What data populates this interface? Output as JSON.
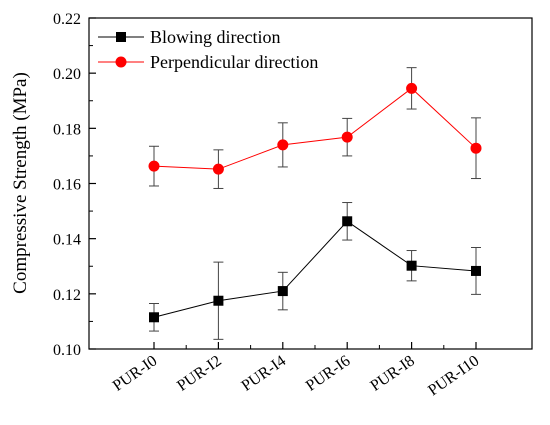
{
  "chart_data": {
    "type": "line",
    "title": "",
    "xlabel": "",
    "ylabel": "Compressive Strength (MPa)",
    "categories": [
      "PUR-I0",
      "PUR-I2",
      "PUR-I4",
      "PUR-I6",
      "PUR-I8",
      "PUR-I10"
    ],
    "ylim": [
      0.1,
      0.22
    ],
    "yticks": [
      "0.10",
      "0.12",
      "0.14",
      "0.16",
      "0.18",
      "0.20",
      "0.22"
    ],
    "legend_position": "top-left",
    "grid": false,
    "series": [
      {
        "name": "Blowing direction",
        "color": "#000000",
        "marker": "square",
        "values": [
          0.1115,
          0.1175,
          0.121,
          0.1463,
          0.1302,
          0.1283
        ],
        "error": [
          0.005,
          0.014,
          0.0068,
          0.0068,
          0.0055,
          0.0085
        ]
      },
      {
        "name": "Perpendicular direction",
        "color": "#ff0000",
        "marker": "circle",
        "values": [
          0.1663,
          0.1652,
          0.174,
          0.1768,
          0.1945,
          0.1728
        ],
        "error": [
          0.0072,
          0.007,
          0.008,
          0.0068,
          0.0075,
          0.011
        ]
      }
    ]
  }
}
